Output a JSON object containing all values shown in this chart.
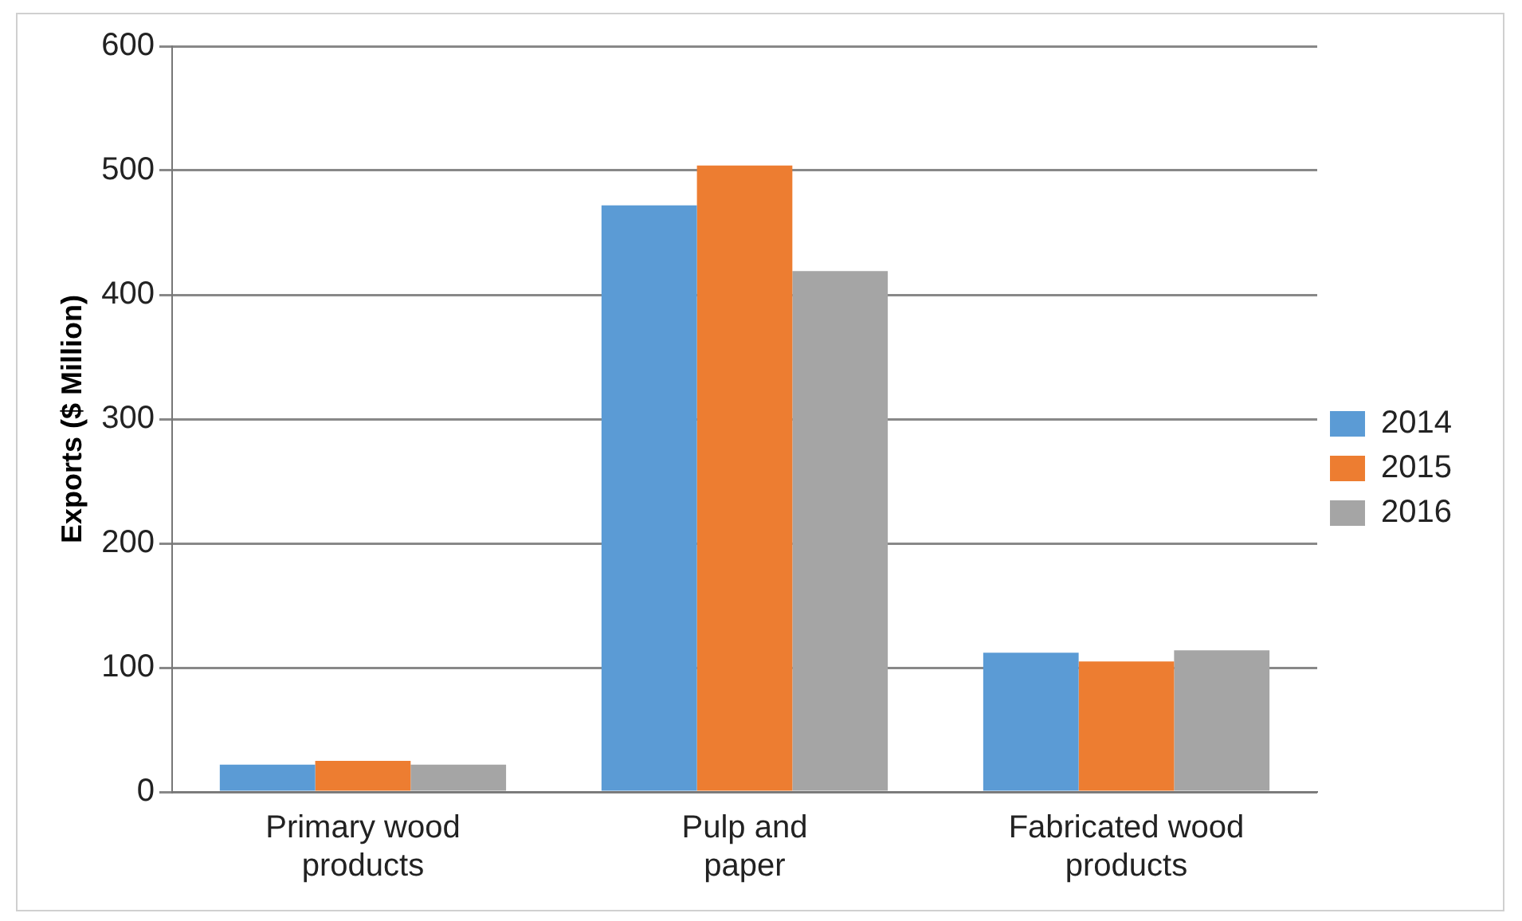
{
  "chart_data": {
    "type": "bar",
    "ylabel": "Exports ($ Million)",
    "categories": [
      "Primary wood products",
      "Pulp and paper",
      "Fabricated wood products"
    ],
    "series": [
      {
        "name": "2014",
        "color": "#5b9bd5",
        "values": [
          22,
          472,
          112
        ]
      },
      {
        "name": "2015",
        "color": "#ed7d31",
        "values": [
          25,
          504,
          105
        ]
      },
      {
        "name": "2016",
        "color": "#a5a5a5",
        "values": [
          22,
          419,
          114
        ]
      }
    ],
    "ylim": [
      0,
      600
    ],
    "yticks": [
      0,
      100,
      200,
      300,
      400,
      500,
      600
    ],
    "grid": "y",
    "legend": "right"
  }
}
